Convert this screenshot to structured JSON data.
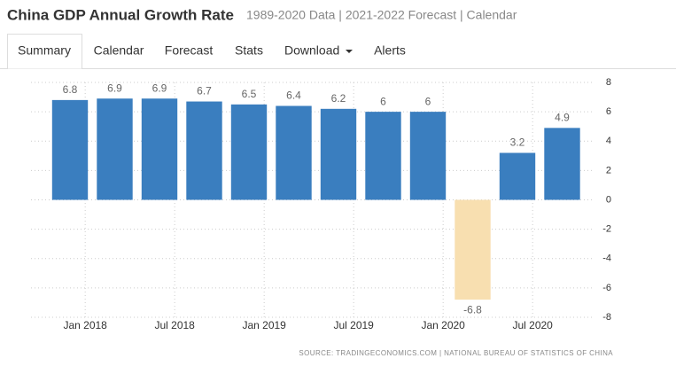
{
  "header": {
    "title": "China GDP Annual Growth Rate",
    "subtitle": "1989-2020 Data | 2021-2022 Forecast | Calendar"
  },
  "tabs": [
    "Summary",
    "Calendar",
    "Forecast",
    "Stats",
    "Download",
    "Alerts"
  ],
  "chart_data": {
    "type": "bar",
    "categories": [
      null,
      null,
      null,
      null,
      null,
      null,
      null,
      null,
      null,
      null,
      null,
      null
    ],
    "values": [
      6.8,
      6.9,
      6.9,
      6.7,
      6.5,
      6.4,
      6.2,
      6,
      6,
      -6.8,
      3.2,
      4.9
    ],
    "color": "#3a7ebf",
    "negative_color": "#f8dfb0",
    "x_labels": [
      "Jan 2018",
      "Jul 2018",
      "Jan 2019",
      "Jul 2019",
      "Jan 2020",
      "Jul 2020"
    ],
    "ylim": [
      -8,
      8
    ],
    "yticks": [
      8,
      6,
      4,
      2,
      0,
      -2,
      -4,
      -6,
      -8
    ],
    "grid": true,
    "source": "SOURCE: TRADINGECONOMICS.COM | NATIONAL BUREAU OF STATISTICS OF CHINA"
  }
}
